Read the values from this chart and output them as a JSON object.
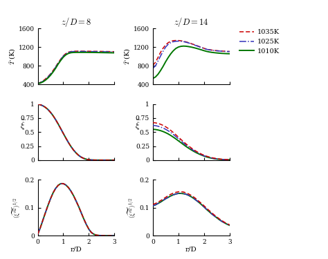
{
  "title_left": "z/D = 8",
  "title_right": "z/D = 14",
  "legend_labels": [
    "1035K",
    "1025K",
    "1010K"
  ],
  "legend_colors": [
    "#cc0000",
    "#3333bb",
    "#007700"
  ],
  "legend_styles": [
    "--",
    "-.",
    "-"
  ],
  "r": [
    0,
    0.1,
    0.2,
    0.3,
    0.4,
    0.5,
    0.6,
    0.7,
    0.8,
    0.9,
    1.0,
    1.1,
    1.2,
    1.3,
    1.4,
    1.5,
    1.6,
    1.7,
    1.8,
    1.9,
    2.0,
    2.1,
    2.2,
    2.3,
    2.4,
    2.5,
    2.6,
    2.7,
    2.8,
    2.9,
    3.0
  ],
  "T_left_1035": [
    420,
    445,
    475,
    518,
    568,
    628,
    700,
    780,
    866,
    945,
    1015,
    1065,
    1093,
    1107,
    1112,
    1114,
    1114,
    1114,
    1113,
    1113,
    1112,
    1112,
    1111,
    1111,
    1110,
    1109,
    1108,
    1107,
    1106,
    1105,
    1104
  ],
  "T_left_1025": [
    420,
    440,
    468,
    510,
    560,
    620,
    690,
    770,
    858,
    938,
    1008,
    1058,
    1086,
    1101,
    1107,
    1109,
    1109,
    1108,
    1108,
    1107,
    1107,
    1106,
    1105,
    1105,
    1104,
    1103,
    1102,
    1101,
    1100,
    1099,
    1098
  ],
  "T_left_1010": [
    420,
    432,
    455,
    492,
    540,
    598,
    668,
    748,
    838,
    916,
    986,
    1036,
    1066,
    1081,
    1086,
    1088,
    1088,
    1088,
    1088,
    1088,
    1087,
    1087,
    1086,
    1085,
    1084,
    1083,
    1082,
    1081,
    1080,
    1079,
    1078
  ],
  "T_right_1035": [
    810,
    875,
    978,
    1088,
    1178,
    1248,
    1296,
    1326,
    1340,
    1344,
    1343,
    1337,
    1326,
    1312,
    1296,
    1277,
    1257,
    1237,
    1216,
    1195,
    1175,
    1159,
    1147,
    1138,
    1131,
    1125,
    1120,
    1116,
    1113,
    1110,
    1108
  ],
  "T_right_1025": [
    745,
    798,
    900,
    1010,
    1112,
    1202,
    1262,
    1297,
    1316,
    1326,
    1329,
    1326,
    1318,
    1305,
    1290,
    1272,
    1252,
    1231,
    1211,
    1191,
    1171,
    1155,
    1143,
    1135,
    1128,
    1122,
    1117,
    1113,
    1110,
    1107,
    1105
  ],
  "T_right_1010": [
    530,
    560,
    618,
    698,
    788,
    888,
    978,
    1058,
    1123,
    1173,
    1203,
    1218,
    1223,
    1220,
    1212,
    1202,
    1189,
    1175,
    1159,
    1142,
    1125,
    1110,
    1098,
    1089,
    1082,
    1076,
    1071,
    1067,
    1064,
    1061,
    1059
  ],
  "xi_left_1035": [
    1.0,
    0.989,
    0.97,
    0.942,
    0.903,
    0.853,
    0.793,
    0.722,
    0.644,
    0.561,
    0.476,
    0.393,
    0.314,
    0.242,
    0.179,
    0.127,
    0.084,
    0.052,
    0.03,
    0.015,
    0.007,
    0.003,
    0.001,
    0.0005,
    0.0002,
    0.0001,
    0.0001,
    0.0001,
    0.0001,
    0.0001,
    0.0001
  ],
  "xi_left_1025": [
    1.0,
    0.989,
    0.97,
    0.942,
    0.903,
    0.853,
    0.793,
    0.722,
    0.644,
    0.561,
    0.476,
    0.393,
    0.314,
    0.242,
    0.179,
    0.127,
    0.084,
    0.052,
    0.03,
    0.015,
    0.007,
    0.003,
    0.001,
    0.0005,
    0.0002,
    0.0001,
    0.0001,
    0.0001,
    0.0001,
    0.0001,
    0.0001
  ],
  "xi_left_1010": [
    1.0,
    0.989,
    0.97,
    0.942,
    0.903,
    0.853,
    0.793,
    0.722,
    0.644,
    0.561,
    0.476,
    0.393,
    0.314,
    0.242,
    0.179,
    0.127,
    0.084,
    0.052,
    0.03,
    0.015,
    0.007,
    0.003,
    0.001,
    0.0005,
    0.0002,
    0.0001,
    0.0001,
    0.0001,
    0.0001,
    0.0001,
    0.0001
  ],
  "xi_right_1035": [
    0.67,
    0.665,
    0.655,
    0.64,
    0.62,
    0.595,
    0.565,
    0.53,
    0.492,
    0.452,
    0.41,
    0.368,
    0.327,
    0.288,
    0.251,
    0.217,
    0.185,
    0.156,
    0.13,
    0.107,
    0.087,
    0.07,
    0.056,
    0.044,
    0.034,
    0.026,
    0.02,
    0.015,
    0.012,
    0.009,
    0.007
  ],
  "xi_right_1025": [
    0.62,
    0.615,
    0.605,
    0.59,
    0.572,
    0.55,
    0.523,
    0.492,
    0.458,
    0.42,
    0.381,
    0.342,
    0.304,
    0.267,
    0.232,
    0.2,
    0.17,
    0.143,
    0.118,
    0.096,
    0.077,
    0.061,
    0.048,
    0.037,
    0.028,
    0.021,
    0.016,
    0.012,
    0.009,
    0.007,
    0.005
  ],
  "xi_right_1010": [
    0.55,
    0.546,
    0.538,
    0.526,
    0.51,
    0.49,
    0.467,
    0.44,
    0.41,
    0.378,
    0.344,
    0.31,
    0.276,
    0.243,
    0.212,
    0.183,
    0.156,
    0.132,
    0.11,
    0.09,
    0.072,
    0.057,
    0.044,
    0.034,
    0.026,
    0.019,
    0.015,
    0.011,
    0.008,
    0.006,
    0.005
  ],
  "xirms_left_1035": [
    0.005,
    0.028,
    0.055,
    0.082,
    0.108,
    0.132,
    0.153,
    0.169,
    0.18,
    0.186,
    0.186,
    0.181,
    0.172,
    0.159,
    0.143,
    0.124,
    0.104,
    0.082,
    0.06,
    0.04,
    0.023,
    0.011,
    0.005,
    0.002,
    0.001,
    0.0005,
    0.0002,
    0.0001,
    0.0001,
    0.0001,
    0.0001
  ],
  "xirms_left_1025": [
    0.005,
    0.028,
    0.055,
    0.082,
    0.108,
    0.132,
    0.153,
    0.169,
    0.18,
    0.186,
    0.186,
    0.181,
    0.172,
    0.159,
    0.143,
    0.124,
    0.104,
    0.082,
    0.06,
    0.04,
    0.023,
    0.011,
    0.005,
    0.002,
    0.001,
    0.0005,
    0.0002,
    0.0001,
    0.0001,
    0.0001,
    0.0001
  ],
  "xirms_left_1010": [
    0.005,
    0.028,
    0.055,
    0.082,
    0.108,
    0.132,
    0.153,
    0.169,
    0.18,
    0.186,
    0.186,
    0.181,
    0.172,
    0.159,
    0.143,
    0.124,
    0.104,
    0.082,
    0.06,
    0.04,
    0.023,
    0.011,
    0.005,
    0.002,
    0.001,
    0.0005,
    0.0002,
    0.0001,
    0.0001,
    0.0001,
    0.0001
  ],
  "xirms_right_1035": [
    0.112,
    0.115,
    0.12,
    0.125,
    0.131,
    0.137,
    0.143,
    0.148,
    0.152,
    0.155,
    0.157,
    0.157,
    0.156,
    0.153,
    0.149,
    0.144,
    0.138,
    0.131,
    0.123,
    0.115,
    0.107,
    0.098,
    0.09,
    0.082,
    0.074,
    0.067,
    0.06,
    0.054,
    0.048,
    0.043,
    0.039
  ],
  "xirms_right_1025": [
    0.107,
    0.11,
    0.115,
    0.12,
    0.126,
    0.132,
    0.137,
    0.142,
    0.146,
    0.149,
    0.151,
    0.151,
    0.15,
    0.148,
    0.144,
    0.139,
    0.133,
    0.126,
    0.119,
    0.111,
    0.103,
    0.094,
    0.086,
    0.078,
    0.071,
    0.064,
    0.057,
    0.051,
    0.046,
    0.041,
    0.037
  ],
  "xirms_right_1010": [
    0.107,
    0.11,
    0.115,
    0.12,
    0.126,
    0.132,
    0.137,
    0.142,
    0.146,
    0.149,
    0.151,
    0.151,
    0.15,
    0.148,
    0.144,
    0.139,
    0.133,
    0.126,
    0.119,
    0.111,
    0.103,
    0.094,
    0.086,
    0.078,
    0.071,
    0.064,
    0.057,
    0.051,
    0.046,
    0.041,
    0.037
  ],
  "T_ylim": [
    400,
    1600
  ],
  "T_yticks": [
    400,
    800,
    1200,
    1600
  ],
  "xi_ylim": [
    0,
    1
  ],
  "xi_yticks": [
    0,
    0.25,
    0.5,
    0.75,
    1
  ],
  "xirms_ylim": [
    0,
    0.2
  ],
  "xirms_yticks": [
    0,
    0.1,
    0.2
  ],
  "xlim": [
    0,
    3
  ],
  "xticks": [
    0,
    1,
    2,
    3
  ]
}
